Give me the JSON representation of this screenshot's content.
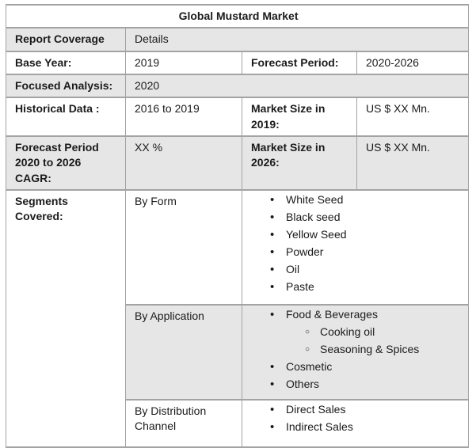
{
  "table": {
    "title": "Global Mustard Market",
    "header": {
      "label": "Report Coverage",
      "value": "Details"
    },
    "facts": {
      "base_year": {
        "label": "Base Year:",
        "value": "2019"
      },
      "forecast_period": {
        "label": "Forecast Period:",
        "value": "2020-2026"
      },
      "focused_analysis": {
        "label": "Focused Analysis:",
        "value": "2020"
      },
      "historical_data": {
        "label": "Historical Data :",
        "value": "2016 to 2019"
      },
      "market_size_2019": {
        "label": "Market Size in 2019:",
        "value": "US $ XX Mn."
      },
      "forecast_cagr": {
        "label": "Forecast Period 2020 to 2026 CAGR:",
        "value": "XX %"
      },
      "market_size_2026": {
        "label": "Market Size in 2026:",
        "value": "US $ XX Mn."
      }
    },
    "segments": {
      "label": "Segments Covered:",
      "groups": [
        {
          "name": "By Form",
          "items": [
            {
              "text": "White Seed",
              "level": 1
            },
            {
              "text": "Black seed",
              "level": 1
            },
            {
              "text": "Yellow Seed",
              "level": 1
            },
            {
              "text": "Powder",
              "level": 1
            },
            {
              "text": "Oil",
              "level": 1
            },
            {
              "text": "Paste",
              "level": 1
            }
          ]
        },
        {
          "name": "By Application",
          "items": [
            {
              "text": "Food & Beverages",
              "level": 1
            },
            {
              "text": "Cooking oil",
              "level": 2
            },
            {
              "text": "Seasoning & Spices",
              "level": 2
            },
            {
              "text": "Cosmetic",
              "level": 1
            },
            {
              "text": "Others",
              "level": 1
            }
          ]
        },
        {
          "name": "By Distribution Channel",
          "items": [
            {
              "text": "Direct Sales",
              "level": 1
            },
            {
              "text": "Indirect Sales",
              "level": 1
            }
          ]
        }
      ]
    }
  },
  "icons": {
    "disc_bullet": "•",
    "circle_bullet": "○"
  },
  "colors": {
    "row_shade": "#e7e6e6",
    "border_inner": "#a3a3a3",
    "border_outer": "#6e6e6e",
    "title_separator": "#a6a6a6",
    "text": "#1b1b1b",
    "background": "#ffffff"
  }
}
